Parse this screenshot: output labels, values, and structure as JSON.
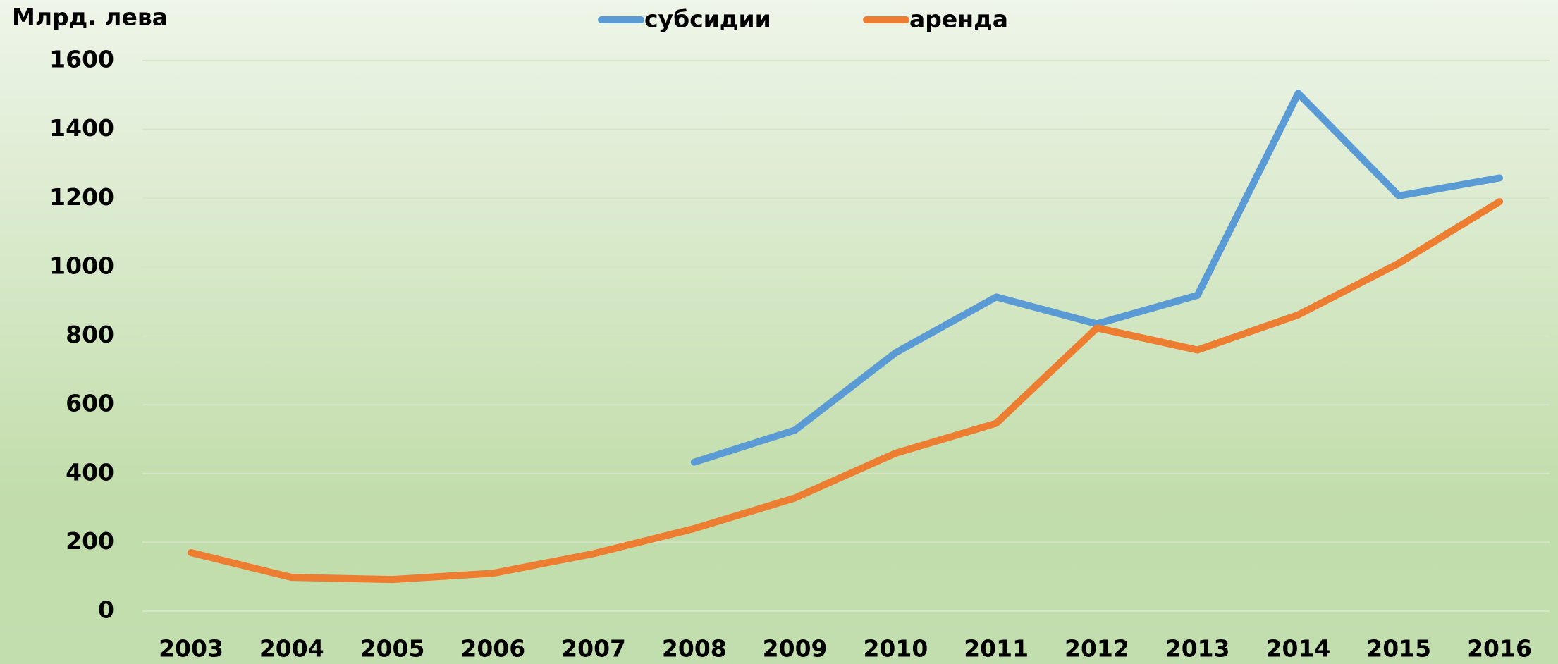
{
  "chart_data": {
    "type": "line",
    "title": "Млрд. лева",
    "categories": [
      "2003",
      "2004",
      "2005",
      "2006",
      "2007",
      "2008",
      "2009",
      "2010",
      "2011",
      "2012",
      "2013",
      "2014",
      "2015",
      "2016"
    ],
    "series": [
      {
        "name": "субсидии",
        "color": "#5b9bd5",
        "values": [
          null,
          null,
          null,
          null,
          null,
          433,
          526,
          751,
          913,
          835,
          918,
          1505,
          1207,
          1259
        ]
      },
      {
        "name": "аренда",
        "color": "#ed7d31",
        "values": [
          170,
          98,
          92,
          110,
          167,
          240,
          329,
          459,
          546,
          823,
          759,
          861,
          1011,
          1190
        ]
      }
    ],
    "ylim": [
      0,
      1600
    ],
    "yticks": [
      0,
      200,
      400,
      600,
      800,
      1000,
      1200,
      1400,
      1600
    ],
    "grid": true,
    "legend": "top"
  }
}
